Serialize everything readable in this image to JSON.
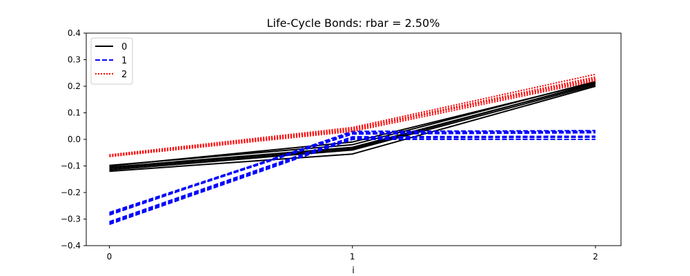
{
  "chart_data": {
    "type": "line",
    "title": "Life-Cycle Bonds: rbar = 2.50%",
    "xlabel": "i",
    "ylabel": "",
    "x": [
      0,
      1,
      2
    ],
    "xticks": [
      "0",
      "1",
      "2"
    ],
    "ylim": [
      -0.4,
      0.4
    ],
    "yticks": [
      "−0.4",
      "−0.3",
      "−0.2",
      "−0.1",
      "0.0",
      "0.1",
      "0.2",
      "0.3",
      "0.4"
    ],
    "grid": false,
    "legend_position": "top-left",
    "series": [
      {
        "name": "0",
        "color": "#000000",
        "style": "solid",
        "lines": [
          [
            -0.12,
            -0.055,
            0.2
          ],
          [
            -0.115,
            -0.04,
            0.205
          ],
          [
            -0.105,
            -0.03,
            0.21
          ],
          [
            -0.1,
            -0.01,
            0.215
          ],
          [
            -0.098,
            -0.02,
            0.218
          ],
          [
            -0.11,
            -0.035,
            0.212
          ]
        ]
      },
      {
        "name": "1",
        "color": "#0000ff",
        "style": "dashed",
        "lines": [
          [
            -0.32,
            0.0,
            0.0
          ],
          [
            -0.315,
            0.005,
            0.008
          ],
          [
            -0.31,
            0.01,
            0.012
          ],
          [
            -0.28,
            0.02,
            0.025
          ],
          [
            -0.275,
            0.025,
            0.03
          ],
          [
            -0.285,
            0.03,
            0.033
          ]
        ]
      },
      {
        "name": "2",
        "color": "#ff0000",
        "style": "dotted",
        "lines": [
          [
            -0.065,
            0.03,
            0.22
          ],
          [
            -0.06,
            0.035,
            0.23
          ],
          [
            -0.063,
            0.04,
            0.235
          ],
          [
            -0.058,
            0.045,
            0.245
          ],
          [
            -0.061,
            0.038,
            0.225
          ]
        ]
      }
    ]
  }
}
